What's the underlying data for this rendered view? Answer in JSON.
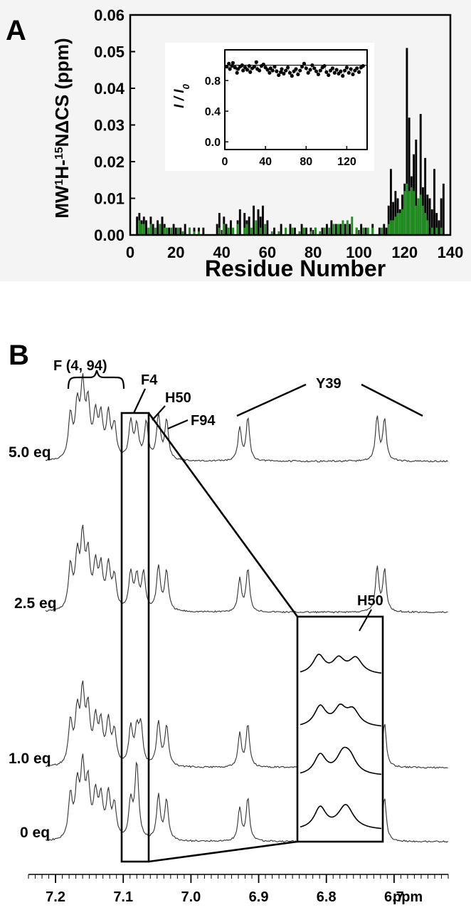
{
  "figure": {
    "panel_a_letter": "A",
    "panel_b_letter": "B"
  },
  "chart_data": [
    {
      "type": "bar",
      "panel": "A",
      "ylabel_parts": {
        "pre": "MW",
        "sup1": "1",
        "mid": "H-",
        "sup2": "15",
        "post": "NΔCS (ppm)"
      },
      "xlabel": "Residue Number",
      "xlim": [
        0,
        140
      ],
      "ylim": [
        0,
        0.06
      ],
      "xticks": [
        0,
        20,
        40,
        60,
        80,
        100,
        120,
        140
      ],
      "yticks": [
        "0.00",
        "0.01",
        "0.02",
        "0.03",
        "0.04",
        "0.05",
        "0.06"
      ],
      "colors": {
        "black_series": "#000000",
        "green_series": "#1e8f1e"
      },
      "series": [
        {
          "color": "#000000",
          "x": [
            3,
            4,
            5,
            6,
            7,
            9,
            10,
            12,
            13,
            14,
            15,
            17,
            19,
            20,
            22,
            24,
            26,
            28,
            30,
            32,
            38,
            39,
            41,
            42,
            44,
            47,
            48,
            50,
            51,
            52,
            54,
            56,
            57,
            58,
            60,
            63,
            66,
            70,
            72,
            75,
            77,
            79,
            81,
            84,
            86,
            88,
            90,
            92,
            94,
            96,
            99,
            101,
            103,
            106,
            109,
            111,
            112,
            113,
            114,
            115,
            116,
            117,
            118,
            119,
            120,
            121,
            122,
            123,
            124,
            125,
            126,
            127,
            128,
            129,
            130,
            131,
            132,
            133,
            134,
            135,
            136,
            137
          ],
          "values": [
            0.005,
            0.006,
            0.004,
            0.005,
            0.004,
            0.005,
            0.003,
            0.004,
            0.003,
            0.005,
            0.003,
            0.002,
            0.003,
            0.002,
            0.002,
            0.003,
            0.002,
            0.002,
            0.002,
            0.002,
            0.003,
            0.006,
            0.005,
            0.003,
            0.004,
            0.004,
            0.007,
            0.006,
            0.004,
            0.005,
            0.008,
            0.007,
            0.005,
            0.008,
            0.004,
            0.002,
            0.003,
            0.003,
            0.002,
            0.003,
            0.002,
            0.002,
            0.002,
            0.002,
            0.003,
            0.004,
            0.003,
            0.003,
            0.003,
            0.003,
            0.002,
            0.003,
            0.002,
            0.003,
            0.002,
            0.003,
            0.002,
            0.008,
            0.018,
            0.009,
            0.012,
            0.01,
            0.007,
            0.011,
            0.014,
            0.051,
            0.032,
            0.016,
            0.022,
            0.026,
            0.008,
            0.033,
            0.013,
            0.021,
            0.011,
            0.01,
            0.007,
            0.018,
            0.006,
            0.004,
            0.01,
            0.014
          ]
        },
        {
          "color": "#1e8f1e",
          "x": [
            4,
            5,
            6,
            8,
            9,
            11,
            13,
            15,
            16,
            18,
            21,
            23,
            26,
            28,
            30,
            39,
            41,
            43,
            45,
            47,
            50,
            51,
            53,
            55,
            57,
            59,
            62,
            65,
            68,
            71,
            74,
            76,
            79,
            81,
            83,
            85,
            87,
            89,
            91,
            93,
            95,
            97,
            99,
            102,
            104,
            106,
            110,
            113,
            114,
            115,
            116,
            117,
            118,
            119,
            120,
            121,
            122,
            123,
            124,
            125,
            126,
            127,
            128,
            129,
            130,
            132,
            134,
            136
          ],
          "values": [
            0.004,
            0.003,
            0.003,
            0.002,
            0.003,
            0.002,
            0.003,
            0.002,
            0.002,
            0.002,
            0.002,
            0.001,
            0.002,
            0.001,
            0.001,
            0.002,
            0.003,
            0.002,
            0.002,
            0.003,
            0.002,
            0.003,
            0.002,
            0.004,
            0.002,
            0.003,
            0.001,
            0.001,
            0.002,
            0.002,
            0.001,
            0.002,
            0.001,
            0.002,
            0.001,
            0.002,
            0.002,
            0.003,
            0.003,
            0.004,
            0.004,
            0.005,
            0.002,
            0.002,
            0.002,
            0.002,
            0.002,
            0.003,
            0.004,
            0.004,
            0.005,
            0.006,
            0.006,
            0.007,
            0.012,
            0.014,
            0.012,
            0.013,
            0.012,
            0.008,
            0.01,
            0.011,
            0.008,
            0.006,
            0.004,
            0.002,
            0.002,
            0.002
          ]
        }
      ],
      "inset": {
        "type": "scatter",
        "ylabel": "I / I",
        "ylabel_sub": "0",
        "xlim": [
          0,
          140
        ],
        "ylim": [
          -0.1,
          1.2
        ],
        "xticks": [
          0,
          40,
          80,
          120
        ],
        "yticks": [
          "0.0",
          "0.4",
          "0.8"
        ],
        "x": [
          2,
          4,
          5,
          7,
          8,
          10,
          12,
          13,
          15,
          17,
          18,
          20,
          22,
          24,
          25,
          27,
          29,
          31,
          32,
          34,
          36,
          38,
          40,
          42,
          44,
          45,
          47,
          49,
          51,
          53,
          55,
          56,
          58,
          60,
          62,
          64,
          66,
          68,
          70,
          72,
          74,
          76,
          78,
          80,
          82,
          84,
          86,
          88,
          90,
          92,
          94,
          96,
          98,
          100,
          102,
          104,
          106,
          108,
          110,
          112,
          114,
          116,
          118,
          120,
          122,
          124,
          126,
          128,
          130,
          132,
          134,
          136
        ],
        "values": [
          0.98,
          1.02,
          0.95,
          0.99,
          1.03,
          0.97,
          0.9,
          0.95,
          0.98,
          1.0,
          0.93,
          0.97,
          0.94,
          0.99,
          0.91,
          0.96,
          0.98,
          1.04,
          0.95,
          0.93,
          0.99,
          1.01,
          0.97,
          0.94,
          0.9,
          0.96,
          0.93,
          0.98,
          0.92,
          0.87,
          0.91,
          0.95,
          0.89,
          0.93,
          0.97,
          0.9,
          0.86,
          0.92,
          0.95,
          0.88,
          0.93,
          0.98,
          1.02,
          0.96,
          0.9,
          0.94,
          1.0,
          0.96,
          0.92,
          0.88,
          0.93,
          0.97,
          0.99,
          0.91,
          0.87,
          0.93,
          0.96,
          0.9,
          0.94,
          0.89,
          0.92,
          0.86,
          0.93,
          0.97,
          0.9,
          0.95,
          0.88,
          0.93,
          0.96,
          0.91,
          0.97,
          0.99
        ],
        "reference_line": 1.0
      }
    },
    {
      "type": "line",
      "panel": "B",
      "xlabel": "ppm",
      "xlim": [
        7.24,
        6.62
      ],
      "xticks": [
        "7.2",
        "7.1",
        "7.0",
        "6.9",
        "6.8",
        "6.7"
      ],
      "series": [
        {
          "name": "5.0 eq"
        },
        {
          "name": "2.5 eq"
        },
        {
          "name": "1.0 eq"
        },
        {
          "name": "0 eq"
        }
      ],
      "annotations": [
        {
          "text": "F (4, 94)"
        },
        {
          "text": "F4"
        },
        {
          "text": "H50"
        },
        {
          "text": "F94"
        },
        {
          "text": "Y39"
        },
        {
          "text": "H50"
        }
      ]
    }
  ]
}
